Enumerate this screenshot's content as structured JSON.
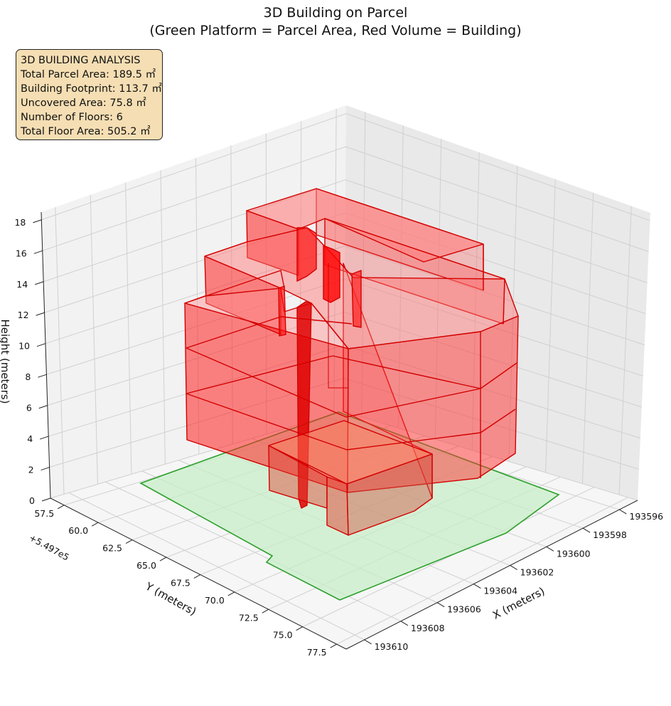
{
  "chart_data": {
    "type": "3d-volume",
    "title": "3D Building on Parcel",
    "subtitle": "(Green Platform = Parcel Area, Red Volume = Building)",
    "xlabel": "X (meters)",
    "ylabel": "Y (meters)",
    "zlabel": "Height (meters)",
    "x_ticks": [
      "193596",
      "193598",
      "193600",
      "193602",
      "193604",
      "193606",
      "193608",
      "193610"
    ],
    "y_ticks": [
      "57.5",
      "60.0",
      "62.5",
      "65.0",
      "67.5",
      "70.0",
      "72.5",
      "75.0",
      "77.5"
    ],
    "y_offset": "+5.497e5",
    "z_ticks": [
      "0",
      "2",
      "4",
      "6",
      "8",
      "10",
      "12",
      "14",
      "16",
      "18"
    ],
    "xlim": [
      193595,
      193611
    ],
    "ylim": [
      549756.5,
      549778.2
    ],
    "zlim": [
      0,
      18.5
    ],
    "grid": true,
    "colors": {
      "parcel": "#2ca02c",
      "parcel_fill": "#c8eec8",
      "building": "#ff0000",
      "building_edge": "#d40000"
    },
    "info_box": {
      "heading": "3D BUILDING ANALYSIS",
      "lines": [
        "Total Parcel Area: 189.5 ㎡",
        "Building Footprint: 113.7 ㎡",
        "Uncovered Area: 75.8 ㎡",
        "Number of Floors: 6",
        "Total Floor Area: 505.2 ㎡"
      ]
    }
  }
}
